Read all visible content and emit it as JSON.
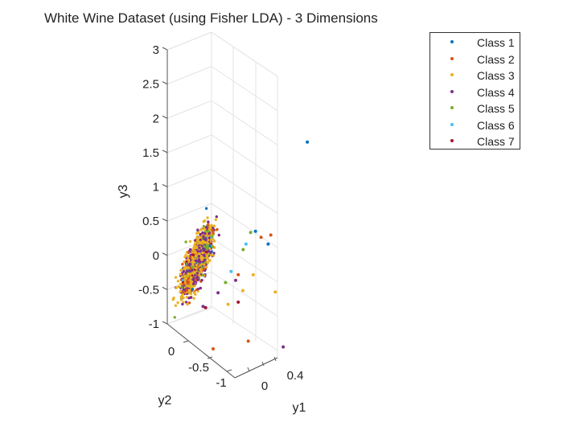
{
  "chart_data": {
    "type": "scatter",
    "projection": "3d",
    "title": "White Wine Dataset (using Fisher LDA) - 3 Dimensions",
    "xlabel": "y1",
    "ylabel": "y2",
    "zlabel": "y3",
    "y1_ticks": [
      "0",
      "0.4"
    ],
    "y2_ticks": [
      "0",
      "-0.5",
      "-1"
    ],
    "y3_ticks": [
      "3",
      "2.5",
      "2",
      "1.5",
      "1",
      "0.5",
      "0",
      "-0.5",
      "-1"
    ],
    "y3_range": [
      -1,
      3
    ],
    "grid": true,
    "legend_position": "top-right",
    "series": [
      {
        "name": "Class 1",
        "color": "#0072BD",
        "points": [
          [
            0.62,
            -0.85,
            2.6
          ],
          [
            0.3,
            -0.7,
            0.85
          ],
          [
            0.25,
            -0.55,
            0.95
          ]
        ]
      },
      {
        "name": "Class 2",
        "color": "#D95319",
        "points": [
          [
            0.15,
            -0.6,
            -0.7
          ],
          [
            0.3,
            -0.75,
            1.0
          ],
          [
            -0.05,
            -0.3,
            -1.05
          ],
          [
            0.1,
            -0.5,
            0.2
          ],
          [
            0.28,
            -0.6,
            0.9
          ]
        ]
      },
      {
        "name": "Class 3",
        "color": "#EDB120",
        "points": [
          [
            0.12,
            -0.55,
            0.0
          ],
          [
            0.05,
            -0.4,
            -0.3
          ],
          [
            0.2,
            -0.6,
            0.3
          ],
          [
            0.32,
            -0.8,
            0.2
          ]
        ]
      },
      {
        "name": "Class 4",
        "color": "#7E2F8E",
        "points": [
          [
            0.1,
            -0.45,
            0.1
          ],
          [
            0.0,
            -0.3,
            -0.2
          ],
          [
            0.4,
            -0.8,
            -0.55
          ],
          [
            -0.1,
            -0.2,
            -0.5
          ]
        ]
      },
      {
        "name": "Class 5",
        "color": "#77AC30",
        "points": [
          [
            0.2,
            -0.55,
            0.9
          ],
          [
            0.05,
            -0.35,
            0.0
          ],
          [
            0.15,
            -0.5,
            0.6
          ]
        ]
      },
      {
        "name": "Class 6",
        "color": "#4DBEEE",
        "points": [
          [
            0.18,
            -0.5,
            0.7
          ],
          [
            0.08,
            -0.4,
            0.2
          ]
        ]
      },
      {
        "name": "Class 7",
        "color": "#A2142F",
        "points": [
          [
            0.1,
            -0.5,
            -0.2
          ],
          [
            -0.1,
            -0.25,
            -0.5
          ]
        ]
      }
    ]
  }
}
